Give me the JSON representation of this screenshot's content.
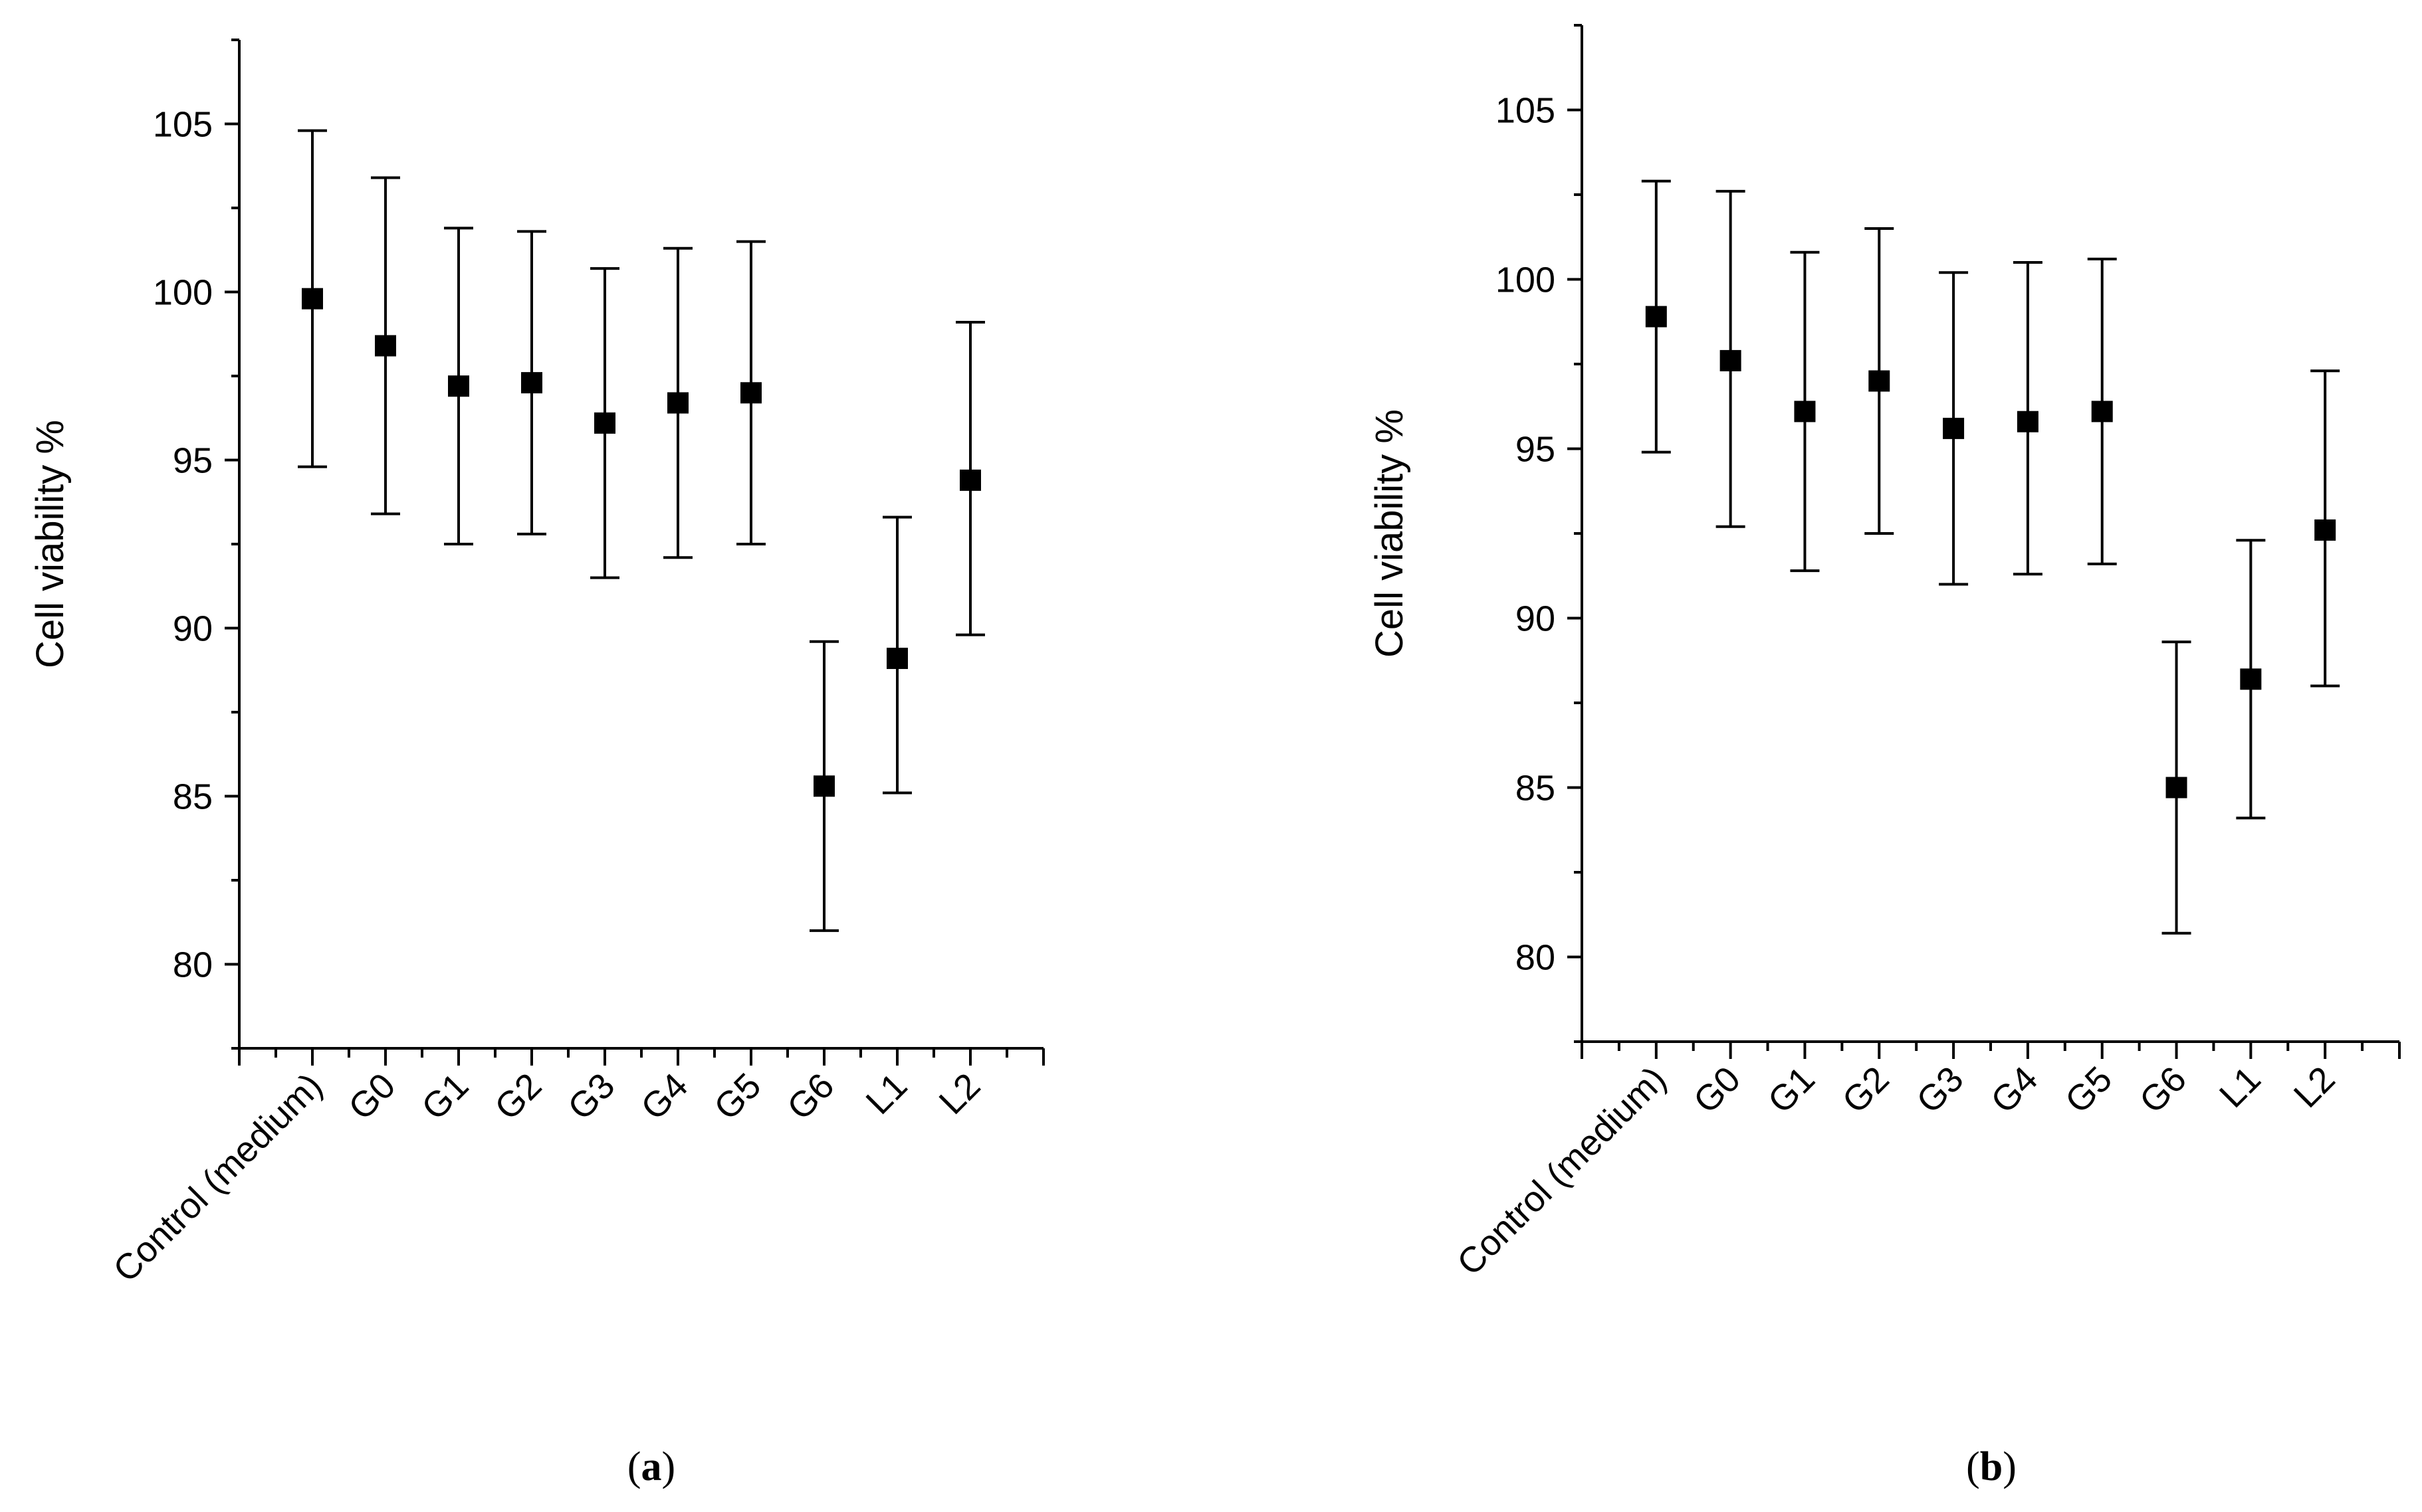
{
  "chart_data": [
    {
      "panel": "a",
      "panel_label": "a",
      "type": "scatter",
      "ylabel": "Cell viability %",
      "xlabel": "",
      "ylim": [
        77.5,
        107.5
      ],
      "yticks": [
        80,
        85,
        90,
        95,
        100,
        105
      ],
      "categories": [
        "Control (medium)",
        "G0",
        "G1",
        "G2",
        "G3",
        "G4",
        "G5",
        "G6",
        "L1",
        "L2"
      ],
      "series": [
        {
          "name": "Cell viability",
          "values": [
            99.8,
            98.4,
            97.2,
            97.3,
            96.1,
            96.7,
            97.0,
            85.3,
            89.1,
            94.4
          ],
          "err_low": [
            94.8,
            93.4,
            92.5,
            92.8,
            91.5,
            92.1,
            92.5,
            81.0,
            85.1,
            89.8
          ],
          "err_high": [
            104.8,
            103.4,
            101.9,
            101.8,
            100.7,
            101.3,
            101.5,
            89.6,
            93.3,
            99.1
          ]
        }
      ]
    },
    {
      "panel": "b",
      "panel_label": "b",
      "type": "scatter",
      "ylabel": "Cell viability %",
      "xlabel": "",
      "ylim": [
        77.5,
        107.5
      ],
      "yticks": [
        80,
        85,
        90,
        95,
        100,
        105
      ],
      "categories": [
        "Control (medium)",
        "G0",
        "G1",
        "G2",
        "G3",
        "G4",
        "G5",
        "G6",
        "L1",
        "L2"
      ],
      "series": [
        {
          "name": "Cell viability",
          "values": [
            98.9,
            97.6,
            96.1,
            97.0,
            95.6,
            95.8,
            96.1,
            85.0,
            88.2,
            92.6
          ],
          "err_low": [
            94.9,
            92.7,
            91.4,
            92.5,
            91.0,
            91.3,
            91.6,
            80.7,
            84.1,
            88.0
          ],
          "err_high": [
            102.9,
            102.6,
            100.8,
            101.5,
            100.2,
            100.5,
            100.6,
            89.3,
            92.3,
            97.3
          ]
        }
      ]
    }
  ]
}
